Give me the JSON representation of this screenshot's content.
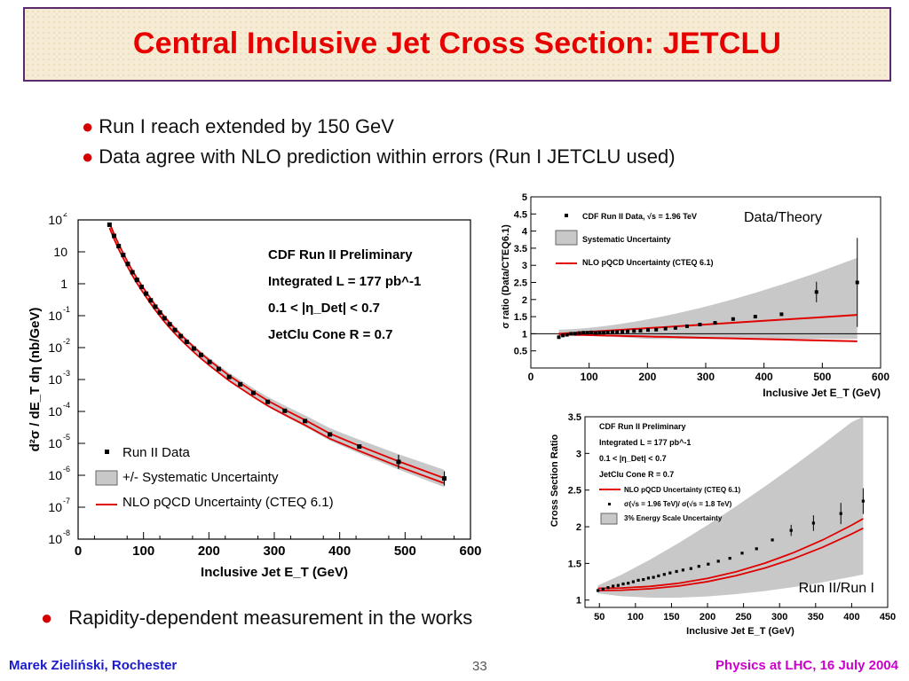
{
  "slide": {
    "title": "Central Inclusive Jet Cross Section: JETCLU",
    "bullets": [
      "Run I reach extended by 150 GeV",
      "Data agree with NLO prediction within errors (Run I JETCLU used)"
    ],
    "bottom_bullet": "Rapidity-dependent measurement in the works",
    "footer_left": "Marek Zieliński, Rochester",
    "page_number": "33",
    "footer_right": "Physics at LHC,  16 July 2004",
    "colors": {
      "title": "#e60000",
      "bullet_dot": "#d40000",
      "footer_left": "#1a1acc",
      "footer_right": "#cc00cc",
      "theory": "#e00000",
      "band": "#c8c8c8"
    }
  },
  "chart_data": [
    {
      "type": "scatter",
      "xlabel": "Inclusive Jet E_T (GeV)",
      "ylabel": "d²σ / dE_T dη (nb/GeV)",
      "xlim": [
        0,
        600
      ],
      "ylim_log10": [
        -8,
        2
      ],
      "log_y": true,
      "x_ticks": [
        "0",
        "100",
        "200",
        "300",
        "400",
        "500",
        "600"
      ],
      "y_ticks": [
        "10^2",
        "10",
        "1",
        "10^-1",
        "10^-2",
        "10^-3",
        "10^-4",
        "10^-5",
        "10^-6",
        "10^-7",
        "10^-8"
      ],
      "info": [
        "CDF Run II Preliminary",
        "Integrated L = 177 pb^-1",
        "0.1 < |η_Det| < 0.7",
        "JetClu Cone R = 0.7"
      ],
      "legend": [
        "Run II Data",
        "+/- Systematic Uncertainty",
        "NLO pQCD Uncertainty (CTEQ 6.1)"
      ],
      "series": [
        {
          "name": "Run II Data",
          "x": [
            48,
            55,
            62,
            69,
            76,
            83,
            90,
            97,
            104,
            111,
            118,
            125,
            132,
            140,
            148,
            157,
            166,
            177,
            188,
            201,
            215,
            231,
            248,
            268,
            290,
            316,
            347,
            385,
            430,
            490,
            560
          ],
          "log10_y": [
            1.85,
            1.5,
            1.18,
            0.9,
            0.62,
            0.36,
            0.12,
            -0.1,
            -0.31,
            -0.52,
            -0.72,
            -0.9,
            -1.08,
            -1.27,
            -1.45,
            -1.64,
            -1.82,
            -2.03,
            -2.23,
            -2.45,
            -2.67,
            -2.92,
            -3.15,
            -3.42,
            -3.7,
            -3.98,
            -4.3,
            -4.72,
            -5.1,
            -5.58,
            -6.1
          ]
        }
      ]
    },
    {
      "type": "scatter",
      "annotation": "Data/Theory",
      "xlabel": "Inclusive Jet E_T (GeV)",
      "ylabel": "σ ratio (Data/CTEQ6.1)",
      "xlim": [
        0,
        600
      ],
      "ylim": [
        0,
        5
      ],
      "x_ticks": [
        "0",
        "100",
        "200",
        "300",
        "400",
        "500",
        "600"
      ],
      "y_ticks": [
        "0.5",
        "1",
        "1.5",
        "2",
        "2.5",
        "3",
        "3.5",
        "4",
        "4.5",
        "5"
      ],
      "legend": [
        "CDF Run II Data, √s = 1.96 TeV",
        "Systematic Uncertainty",
        "NLO pQCD Uncertainty (CTEQ 6.1)"
      ],
      "series": [
        {
          "name": "CDF Run II Data, √s = 1.96 TeV",
          "x": [
            48,
            55,
            62,
            69,
            76,
            83,
            90,
            97,
            104,
            111,
            118,
            125,
            132,
            140,
            148,
            157,
            166,
            177,
            188,
            201,
            215,
            231,
            248,
            268,
            290,
            316,
            347,
            385,
            430,
            490,
            560
          ],
          "y": [
            0.9,
            0.95,
            0.97,
            1.0,
            1.0,
            1.02,
            1.03,
            1.03,
            1.04,
            1.02,
            1.03,
            1.03,
            1.04,
            1.05,
            1.05,
            1.06,
            1.07,
            1.08,
            1.09,
            1.11,
            1.12,
            1.15,
            1.17,
            1.22,
            1.27,
            1.32,
            1.43,
            1.5,
            1.57,
            2.22,
            2.5
          ]
        }
      ]
    },
    {
      "type": "scatter",
      "annotation": "Run II/Run I",
      "xlabel": "Inclusive Jet E_T (GeV)",
      "ylabel": "Cross Section Ratio",
      "xlim": [
        30,
        450
      ],
      "ylim": [
        0.9,
        3.5
      ],
      "x_ticks": [
        "50",
        "100",
        "150",
        "200",
        "250",
        "300",
        "350",
        "400",
        "450"
      ],
      "y_ticks": [
        "1",
        "1.5",
        "2",
        "2.5",
        "3",
        "3.5"
      ],
      "info": [
        "CDF Run II Preliminary",
        "Integrated L = 177 pb^-1",
        "0.1 < |η_Det| < 0.7",
        "JetClu Cone R = 0.7"
      ],
      "legend": [
        "NLO pQCD Uncertainty (CTEQ 6.1)",
        "σ(√s = 1.96 TeV)/ σ(√s = 1.8 TeV)",
        "3% Energy Scale Uncertainty"
      ],
      "series": [
        {
          "name": "σ(√s = 1.96 TeV)/ σ(√s = 1.8 TeV)",
          "x": [
            48,
            55,
            62,
            69,
            76,
            83,
            90,
            97,
            104,
            111,
            118,
            125,
            132,
            140,
            148,
            157,
            166,
            177,
            188,
            201,
            215,
            231,
            248,
            268,
            290,
            316,
            347,
            385,
            416
          ],
          "y": [
            1.13,
            1.15,
            1.17,
            1.19,
            1.2,
            1.22,
            1.23,
            1.25,
            1.27,
            1.28,
            1.3,
            1.31,
            1.33,
            1.35,
            1.37,
            1.39,
            1.41,
            1.43,
            1.46,
            1.49,
            1.53,
            1.57,
            1.64,
            1.7,
            1.82,
            1.95,
            2.05,
            2.18,
            2.35
          ]
        }
      ]
    }
  ]
}
